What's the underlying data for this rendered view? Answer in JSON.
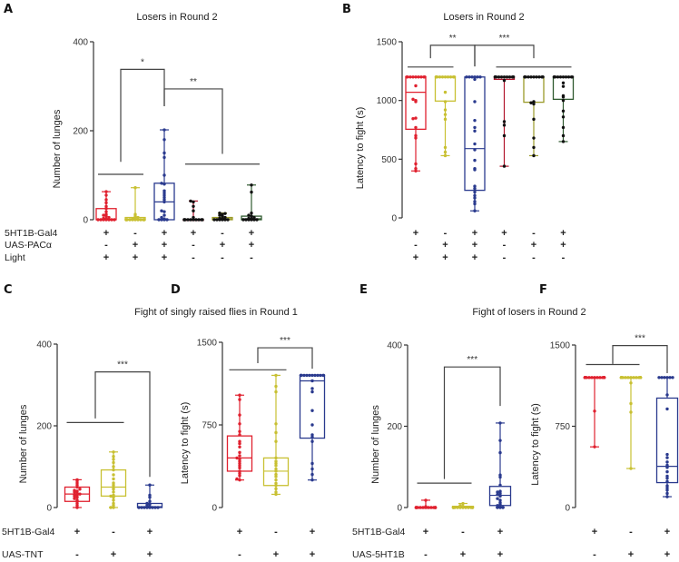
{
  "figure": {
    "panels": [
      "A",
      "B",
      "C",
      "D",
      "E",
      "F"
    ],
    "group_titles": {
      "AB_left": "Losers in Round 2",
      "AB_right": "Losers in Round 2",
      "CD": "Fight of  singly raised flies in Round 1",
      "EF": "Fight of  losers in Round 2"
    }
  },
  "colors": {
    "red": "#e0202e",
    "yellow": "#c8c032",
    "blue": "#2a3a8e",
    "darkred": "#b0132a",
    "olive": "#9a9a28",
    "green": "#2f5a2f",
    "black": "#111111",
    "axis": "#333333",
    "bracket": "#444444"
  },
  "chart_data": [
    {
      "panel": "A",
      "type": "box",
      "title": "Losers in Round 2",
      "ylabel": "Number of lunges",
      "ylim": [
        0,
        400
      ],
      "yticks": [
        0,
        200,
        400
      ],
      "conditions": [
        {
          "label": "5HT1B-Gal4",
          "values": [
            "+",
            "-",
            "+",
            "+",
            "-",
            "+"
          ]
        },
        {
          "label": "UAS-PACα",
          "values": [
            "-",
            "+",
            "+",
            "-",
            "+",
            "+"
          ]
        },
        {
          "label": "Light",
          "values": [
            "+",
            "+",
            "+",
            "-",
            "-",
            "-"
          ]
        }
      ],
      "groups": [
        {
          "color": "red",
          "dot": "red",
          "min": 0,
          "q1": 0,
          "median": 0,
          "q3": 25,
          "max": 63,
          "points": [
            0,
            0,
            0,
            0,
            0,
            0,
            0,
            2,
            3,
            5,
            8,
            10,
            12,
            18,
            25,
            30,
            38,
            45,
            55,
            63
          ]
        },
        {
          "color": "yellow",
          "dot": "yellow",
          "min": 0,
          "q1": 0,
          "median": 0,
          "q3": 5,
          "max": 72,
          "points": [
            0,
            0,
            0,
            0,
            0,
            0,
            0,
            0,
            0,
            0,
            2,
            3,
            5,
            8,
            12,
            72
          ]
        },
        {
          "color": "blue",
          "dot": "blue",
          "min": 0,
          "q1": 0,
          "median": 40,
          "q3": 82,
          "max": 202,
          "points": [
            0,
            0,
            0,
            0,
            2,
            5,
            10,
            18,
            20,
            40,
            45,
            50,
            55,
            60,
            65,
            80,
            82,
            100,
            140,
            150,
            180,
            202
          ]
        },
        {
          "color": "darkred",
          "dot": "black",
          "min": 0,
          "q1": 0,
          "median": 0,
          "q3": 0,
          "max": 42,
          "points": [
            0,
            0,
            0,
            0,
            0,
            0,
            0,
            0,
            0,
            0,
            5,
            20,
            30,
            40,
            42
          ]
        },
        {
          "color": "olive",
          "dot": "black",
          "min": 0,
          "q1": 0,
          "median": 2,
          "q3": 5,
          "max": 15,
          "points": [
            0,
            0,
            0,
            0,
            0,
            0,
            2,
            3,
            5,
            8,
            10,
            12,
            15,
            14
          ]
        },
        {
          "color": "green",
          "dot": "black",
          "min": 0,
          "q1": 0,
          "median": 2,
          "q3": 8,
          "max": 78,
          "points": [
            0,
            0,
            0,
            0,
            0,
            0,
            2,
            3,
            5,
            8,
            10,
            15,
            62,
            78
          ]
        }
      ],
      "brackets": [
        {
          "type": "group",
          "from": 0,
          "to": 1,
          "y": 102
        },
        {
          "type": "group",
          "from": 3,
          "to": 5,
          "y": 125
        },
        {
          "type": "compare",
          "from_x": 0.5,
          "to_x": 2,
          "y": 338,
          "drop_left": 130,
          "drop_right": 255,
          "label": "*"
        },
        {
          "type": "compare",
          "from_x": 2,
          "to_x": 4,
          "y": 294,
          "drop_left": 255,
          "drop_right": 148,
          "label": "**"
        }
      ]
    },
    {
      "panel": "B",
      "type": "box",
      "title": "Losers in Round 2",
      "ylabel": "Latency to fight (s)",
      "ylim": [
        0,
        1500
      ],
      "yticks": [
        0,
        500,
        1000,
        1500
      ],
      "conditions": [
        {
          "label": "",
          "values": [
            "+",
            "-",
            "+",
            "+",
            "-",
            "+"
          ]
        },
        {
          "label": "",
          "values": [
            "-",
            "+",
            "+",
            "-",
            "+",
            "+"
          ]
        },
        {
          "label": "",
          "values": [
            "+",
            "+",
            "+",
            "-",
            "-",
            "-"
          ]
        }
      ],
      "groups": [
        {
          "color": "red",
          "dot": "red",
          "min": 400,
          "q1": 755,
          "median": 1070,
          "q3": 1200,
          "max": 1200,
          "points": [
            1200,
            1200,
            1200,
            1200,
            1200,
            1200,
            1200,
            1200,
            1200,
            1125,
            1000,
            990,
            1010,
            850,
            845,
            770,
            700,
            680,
            460,
            420,
            400
          ]
        },
        {
          "color": "yellow",
          "dot": "yellow",
          "min": 530,
          "q1": 995,
          "median": 1200,
          "q3": 1200,
          "max": 1200,
          "points": [
            1200,
            1200,
            1200,
            1200,
            1200,
            1200,
            1200,
            1200,
            1200,
            1200,
            1070,
            990,
            920,
            880,
            840,
            600,
            560,
            530
          ]
        },
        {
          "color": "blue",
          "dot": "blue",
          "min": 60,
          "q1": 235,
          "median": 590,
          "q3": 1200,
          "max": 1200,
          "points": [
            1200,
            1200,
            1200,
            1200,
            1200,
            1200,
            1180,
            990,
            830,
            770,
            740,
            630,
            580,
            490,
            420,
            410,
            270,
            250,
            220,
            190,
            170,
            140,
            120,
            60
          ]
        },
        {
          "color": "darkred",
          "dot": "black",
          "min": 440,
          "q1": 1180,
          "median": 1200,
          "q3": 1200,
          "max": 1200,
          "points": [
            1200,
            1200,
            1200,
            1200,
            1200,
            1200,
            1200,
            1200,
            1200,
            1200,
            1200,
            1200,
            1170,
            820,
            790,
            700,
            440
          ]
        },
        {
          "color": "olive",
          "dot": "black",
          "min": 530,
          "q1": 985,
          "median": 1200,
          "q3": 1200,
          "max": 1200,
          "points": [
            1200,
            1200,
            1200,
            1200,
            1200,
            1200,
            1200,
            1200,
            1200,
            1200,
            1200,
            990,
            970,
            980,
            840,
            680,
            600,
            530
          ]
        },
        {
          "color": "green",
          "dot": "black",
          "min": 650,
          "q1": 1010,
          "median": 1200,
          "q3": 1200,
          "max": 1200,
          "points": [
            1200,
            1200,
            1200,
            1200,
            1200,
            1200,
            1200,
            1200,
            1200,
            1200,
            1150,
            1120,
            1040,
            1030,
            1000,
            910,
            860,
            770,
            700,
            650
          ]
        }
      ],
      "brackets": [
        {
          "type": "group",
          "from": 0,
          "to": 1,
          "y": 1285
        },
        {
          "type": "group",
          "from": 3,
          "to": 5,
          "y": 1285
        },
        {
          "type": "compare",
          "from_x": 0.5,
          "to_x": 2,
          "y": 1470,
          "drop_left": 1360,
          "drop_right": 1290,
          "label": "**"
        },
        {
          "type": "compare",
          "from_x": 2,
          "to_x": 4,
          "y": 1470,
          "drop_left": 1290,
          "drop_right": 1360,
          "label": "***"
        }
      ]
    },
    {
      "panel": "C",
      "type": "box",
      "title": "",
      "ylabel": "Number of lunges",
      "ylim": [
        0,
        400
      ],
      "yticks": [
        0,
        200,
        400
      ],
      "conditions": [
        {
          "label": "5HT1B-Gal4",
          "values": [
            "+",
            "-",
            "+"
          ]
        },
        {
          "label": "UAS-TNT",
          "values": [
            "-",
            "+",
            "+"
          ]
        }
      ],
      "groups": [
        {
          "color": "red",
          "dot": "red",
          "min": 0,
          "q1": 15,
          "median": 33,
          "q3": 50,
          "max": 68,
          "points": [
            0,
            5,
            10,
            15,
            18,
            22,
            25,
            28,
            30,
            32,
            33,
            35,
            38,
            40,
            42,
            45,
            50,
            55,
            60,
            65,
            68
          ]
        },
        {
          "color": "yellow",
          "dot": "yellow",
          "min": 0,
          "q1": 28,
          "median": 50,
          "q3": 92,
          "max": 136,
          "points": [
            0,
            0,
            5,
            10,
            18,
            25,
            28,
            30,
            38,
            45,
            50,
            55,
            60,
            70,
            80,
            92,
            100,
            110,
            118,
            125,
            136
          ]
        },
        {
          "color": "blue",
          "dot": "blue",
          "min": 0,
          "q1": 0,
          "median": 2,
          "q3": 10,
          "max": 55,
          "points": [
            0,
            0,
            0,
            0,
            0,
            0,
            0,
            0,
            2,
            5,
            8,
            10,
            15,
            25,
            30,
            55
          ]
        }
      ],
      "brackets": [
        {
          "type": "group",
          "from": 0,
          "to": 1,
          "y": 208
        },
        {
          "type": "compare",
          "from_x": 0.5,
          "to_x": 2,
          "y": 332,
          "drop_left": 218,
          "drop_right": 75,
          "label": "***"
        }
      ]
    },
    {
      "panel": "D",
      "type": "box",
      "title": "Fight of  singly raised flies in Round 1",
      "ylabel": "Latency to fight (s)",
      "ylim": [
        0,
        1500
      ],
      "yticks": [
        0,
        750,
        1500
      ],
      "conditions": [
        {
          "label": "",
          "values": [
            "+",
            "-",
            "+"
          ]
        },
        {
          "label": "",
          "values": [
            "-",
            "+",
            "+"
          ]
        }
      ],
      "groups": [
        {
          "color": "red",
          "dot": "red",
          "min": 250,
          "q1": 330,
          "median": 450,
          "q3": 650,
          "max": 1020,
          "points": [
            250,
            260,
            290,
            310,
            330,
            360,
            380,
            400,
            420,
            440,
            450,
            470,
            500,
            550,
            580,
            600,
            660,
            690,
            760,
            840,
            980,
            1020
          ]
        },
        {
          "color": "yellow",
          "dot": "yellow",
          "min": 120,
          "q1": 200,
          "median": 330,
          "q3": 450,
          "max": 1200,
          "points": [
            120,
            140,
            170,
            200,
            220,
            250,
            280,
            300,
            330,
            350,
            380,
            400,
            420,
            450,
            600,
            680,
            760,
            1050,
            1100,
            1200
          ]
        },
        {
          "color": "blue",
          "dot": "blue",
          "min": 250,
          "q1": 630,
          "median": 1150,
          "q3": 1200,
          "max": 1200,
          "points": [
            1200,
            1200,
            1200,
            1200,
            1200,
            1200,
            1200,
            1200,
            1200,
            1200,
            1200,
            1200,
            1150,
            1080,
            1050,
            880,
            750,
            660,
            640,
            600,
            400,
            350,
            300,
            250
          ]
        }
      ],
      "brackets": [
        {
          "type": "group",
          "from": 0,
          "to": 1,
          "y": 1250
        },
        {
          "type": "compare",
          "from_x": 0.5,
          "to_x": 2,
          "y": 1450,
          "drop_left": 1310,
          "drop_right": 1260,
          "label": "***"
        }
      ]
    },
    {
      "panel": "E",
      "type": "box",
      "title": "",
      "ylabel": "Number of lunges",
      "ylim": [
        0,
        400
      ],
      "yticks": [
        0,
        200,
        400
      ],
      "conditions": [
        {
          "label": "5HT1B-Gal4",
          "values": [
            "+",
            "-",
            "+"
          ]
        },
        {
          "label": "UAS-5HT1B",
          "values": [
            "-",
            "+",
            "+"
          ]
        }
      ],
      "groups": [
        {
          "color": "red",
          "dot": "red",
          "min": 0,
          "q1": 0,
          "median": 0,
          "q3": 0,
          "max": 18,
          "points": [
            0,
            0,
            0,
            0,
            0,
            0,
            0,
            0,
            0,
            0,
            0,
            0,
            0,
            2,
            18
          ]
        },
        {
          "color": "yellow",
          "dot": "yellow",
          "min": 0,
          "q1": 0,
          "median": 0,
          "q3": 3,
          "max": 10,
          "points": [
            0,
            0,
            0,
            0,
            0,
            0,
            0,
            0,
            0,
            0,
            0,
            0,
            3,
            5,
            10
          ]
        },
        {
          "color": "blue",
          "dot": "blue",
          "min": 0,
          "q1": 5,
          "median": 30,
          "q3": 52,
          "max": 208,
          "points": [
            0,
            0,
            0,
            2,
            5,
            8,
            12,
            18,
            22,
            28,
            30,
            32,
            35,
            38,
            40,
            55,
            75,
            80,
            135,
            165,
            208
          ]
        }
      ],
      "brackets": [
        {
          "type": "group",
          "from": 0,
          "to": 1,
          "y": 60
        },
        {
          "type": "compare",
          "from_x": 0.5,
          "to_x": 2,
          "y": 346,
          "drop_left": 70,
          "drop_right": 250,
          "label": "***"
        }
      ]
    },
    {
      "panel": "F",
      "type": "box",
      "title": "Fight of  losers in Round 2",
      "ylabel": "Latency to fight (s)",
      "ylim": [
        0,
        1500
      ],
      "yticks": [
        0,
        750,
        1500
      ],
      "conditions": [
        {
          "label": "",
          "values": [
            "+",
            "-",
            "+"
          ]
        },
        {
          "label": "",
          "values": [
            "-",
            "+",
            "+"
          ]
        }
      ],
      "groups": [
        {
          "color": "red",
          "dot": "red",
          "min": 560,
          "q1": 1200,
          "median": 1200,
          "q3": 1200,
          "max": 1200,
          "points": [
            1200,
            1200,
            1200,
            1200,
            1200,
            1200,
            1200,
            1200,
            1200,
            1200,
            1200,
            1200,
            1200,
            1200,
            1200,
            1200,
            1200,
            1200,
            1200,
            890,
            560
          ]
        },
        {
          "color": "yellow",
          "dot": "yellow",
          "min": 360,
          "q1": 1200,
          "median": 1200,
          "q3": 1200,
          "max": 1200,
          "points": [
            1200,
            1200,
            1200,
            1200,
            1200,
            1200,
            1200,
            1200,
            1200,
            1200,
            1200,
            1200,
            1200,
            1200,
            1200,
            1200,
            1200,
            1150,
            960,
            880,
            360
          ]
        },
        {
          "color": "blue",
          "dot": "blue",
          "min": 100,
          "q1": 230,
          "median": 380,
          "q3": 1010,
          "max": 1200,
          "points": [
            1200,
            1200,
            1200,
            1200,
            1200,
            1200,
            1040,
            910,
            490,
            460,
            420,
            390,
            370,
            330,
            290,
            270,
            240,
            200,
            180,
            160,
            130,
            100
          ]
        }
      ],
      "brackets": [
        {
          "type": "group",
          "from": 0,
          "to": 1,
          "y": 1320
        },
        {
          "type": "compare",
          "from_x": 0.5,
          "to_x": 2,
          "y": 1495,
          "drop_left": 1325,
          "drop_right": 1240,
          "label": "***"
        }
      ]
    }
  ]
}
